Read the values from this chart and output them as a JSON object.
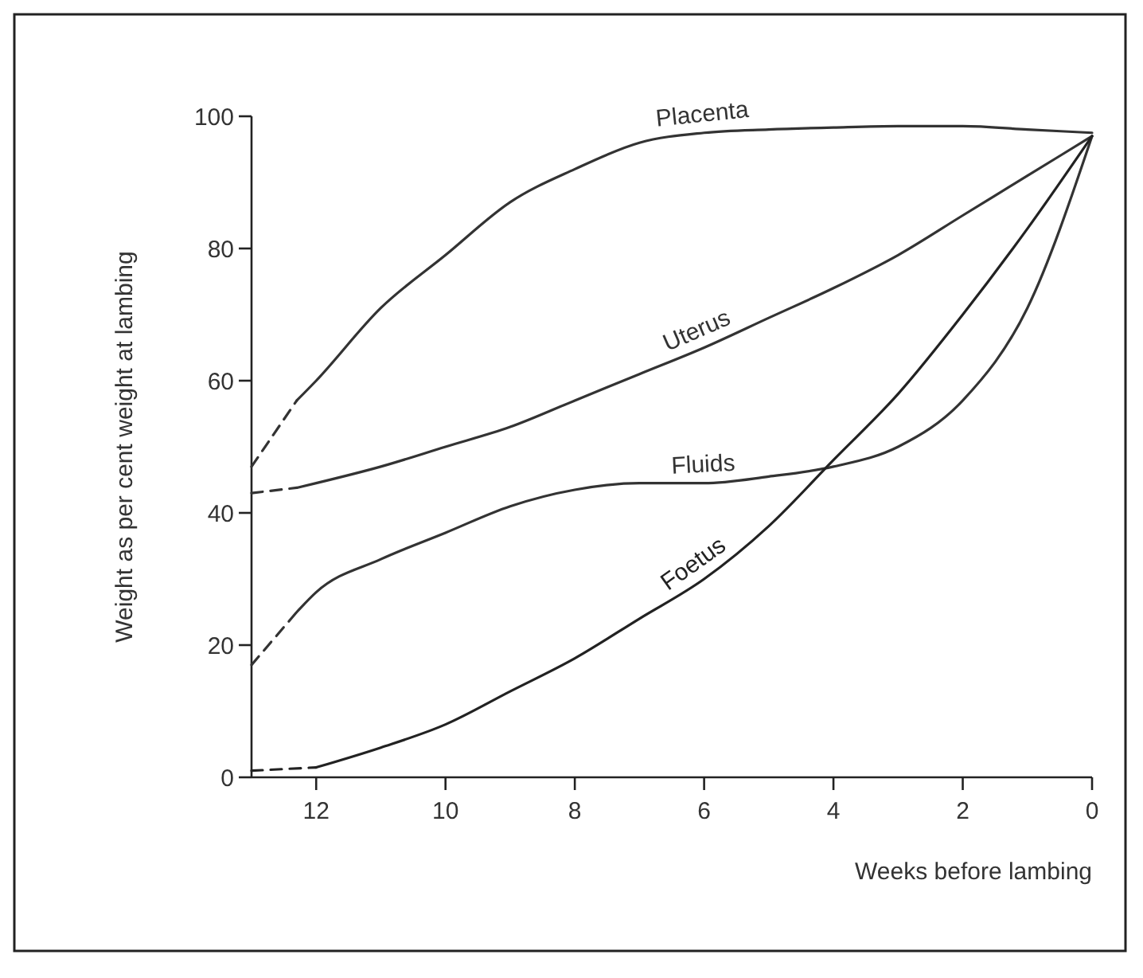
{
  "chart_data": {
    "type": "line",
    "xlabel": "Weeks before lambing",
    "ylabel": "Weight as per cent weight at lambing",
    "xlim": [
      13,
      0
    ],
    "ylim": [
      0,
      100
    ],
    "xticks": [
      12,
      10,
      8,
      6,
      4,
      2,
      0
    ],
    "yticks": [
      0,
      20,
      40,
      60,
      80,
      100
    ],
    "grid": false,
    "series": [
      {
        "color": "#333333",
        "line_style": "dashed",
        "x": [
          13,
          12.3
        ],
        "values": [
          47,
          57
        ]
      },
      {
        "name": "Placenta",
        "color": "#333333",
        "line_style": "solid",
        "x": [
          12.3,
          12,
          11,
          10,
          9,
          8,
          7,
          6,
          5,
          4,
          3,
          2,
          1,
          0
        ],
        "values": [
          57,
          60,
          71,
          79,
          87,
          92,
          96,
          97.5,
          98,
          98.3,
          98.5,
          98.5,
          98,
          97.5
        ]
      },
      {
        "color": "#333333",
        "line_style": "dashed",
        "x": [
          13,
          12.3
        ],
        "values": [
          43,
          43.8
        ]
      },
      {
        "name": "Uterus",
        "color": "#333333",
        "line_style": "solid",
        "x": [
          12.3,
          12,
          11,
          10,
          9,
          8,
          7,
          6,
          5,
          4,
          3,
          2,
          1,
          0
        ],
        "values": [
          43.8,
          44.5,
          47,
          50,
          53,
          57,
          61,
          65,
          69.5,
          74,
          79,
          85,
          91,
          97
        ]
      },
      {
        "color": "#333333",
        "line_style": "dashed",
        "x": [
          13,
          12.3
        ],
        "values": [
          17,
          25
        ]
      },
      {
        "name": "Fluids",
        "color": "#333333",
        "line_style": "solid",
        "x": [
          12.3,
          12,
          11,
          10,
          9,
          8,
          7,
          6,
          5,
          4,
          3,
          2,
          1,
          0
        ],
        "values": [
          25,
          28,
          33,
          37,
          41,
          43.5,
          44.5,
          44.5,
          45.5,
          47,
          50,
          57,
          71,
          97
        ]
      },
      {
        "color": "#222222",
        "line_style": "dashed",
        "x": [
          13,
          12
        ],
        "values": [
          1,
          1.5
        ]
      },
      {
        "name": "Foetus",
        "color": "#222222",
        "line_style": "solid",
        "x": [
          12,
          11,
          10,
          9,
          8,
          7,
          6,
          5,
          4,
          3,
          2,
          1,
          0
        ],
        "values": [
          1.5,
          4.5,
          8,
          13,
          18,
          24,
          30,
          38,
          48,
          58,
          70,
          83,
          97
        ]
      }
    ]
  }
}
